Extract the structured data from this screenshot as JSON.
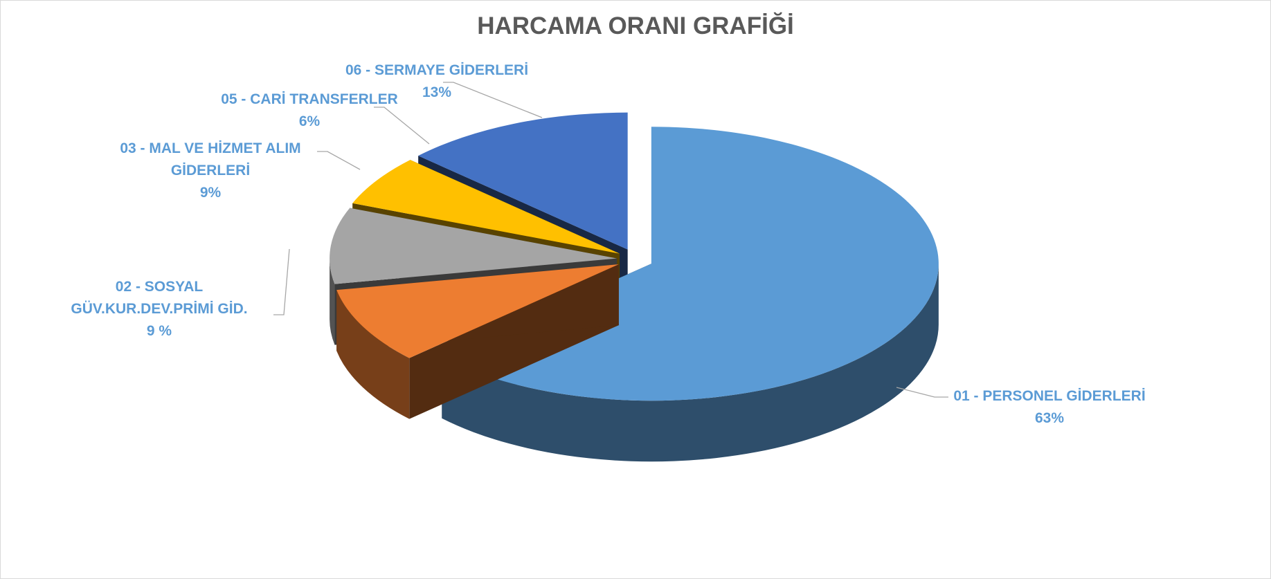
{
  "chart_data": {
    "type": "pie",
    "title": "HARCAMA ORANI GRAFİĞİ",
    "categories": [
      "01 - PERSONEL GİDERLERİ",
      "02 - SOSYAL GÜV.KUR.DEV.PRİMİ GİD.",
      "03 - MAL VE HİZMET ALIM GİDERLERİ",
      "05 - CARİ TRANSFERLER",
      "06 - SERMAYE GİDERLERİ"
    ],
    "values": [
      63,
      9,
      9,
      6,
      13
    ],
    "value_labels": [
      "63%",
      "9 %",
      "9%",
      "6%",
      "13%"
    ],
    "colors": [
      "#5b9bd5",
      "#ed7d31",
      "#a5a5a5",
      "#ffc000",
      "#4472c4"
    ]
  }
}
